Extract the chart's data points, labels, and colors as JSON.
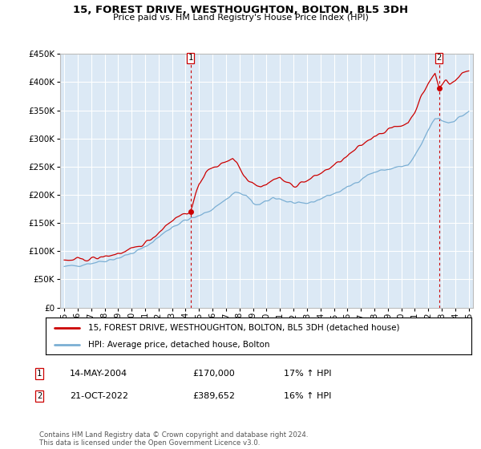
{
  "title": "15, FOREST DRIVE, WESTHOUGHTON, BOLTON, BL5 3DH",
  "subtitle": "Price paid vs. HM Land Registry's House Price Index (HPI)",
  "ylim": [
    0,
    450000
  ],
  "yticks": [
    0,
    50000,
    100000,
    150000,
    200000,
    250000,
    300000,
    350000,
    400000,
    450000
  ],
  "background_color": "#dce9f5",
  "grid_color": "#ffffff",
  "red_color": "#cc0000",
  "blue_color": "#7bafd4",
  "sale1_x": 2004.37,
  "sale1_y": 170000,
  "sale2_x": 2022.79,
  "sale2_y": 389652,
  "sale1_label": "14-MAY-2004",
  "sale1_price": "£170,000",
  "sale1_hpi": "17% ↑ HPI",
  "sale2_label": "21-OCT-2022",
  "sale2_price": "£389,652",
  "sale2_hpi": "16% ↑ HPI",
  "legend_line1": "15, FOREST DRIVE, WESTHOUGHTON, BOLTON, BL5 3DH (detached house)",
  "legend_line2": "HPI: Average price, detached house, Bolton",
  "footer": "Contains HM Land Registry data © Crown copyright and database right 2024.\nThis data is licensed under the Open Government Licence v3.0.",
  "xlim_left": 1994.7,
  "xlim_right": 2025.3,
  "xtick_start": 1995,
  "xtick_end": 2025
}
